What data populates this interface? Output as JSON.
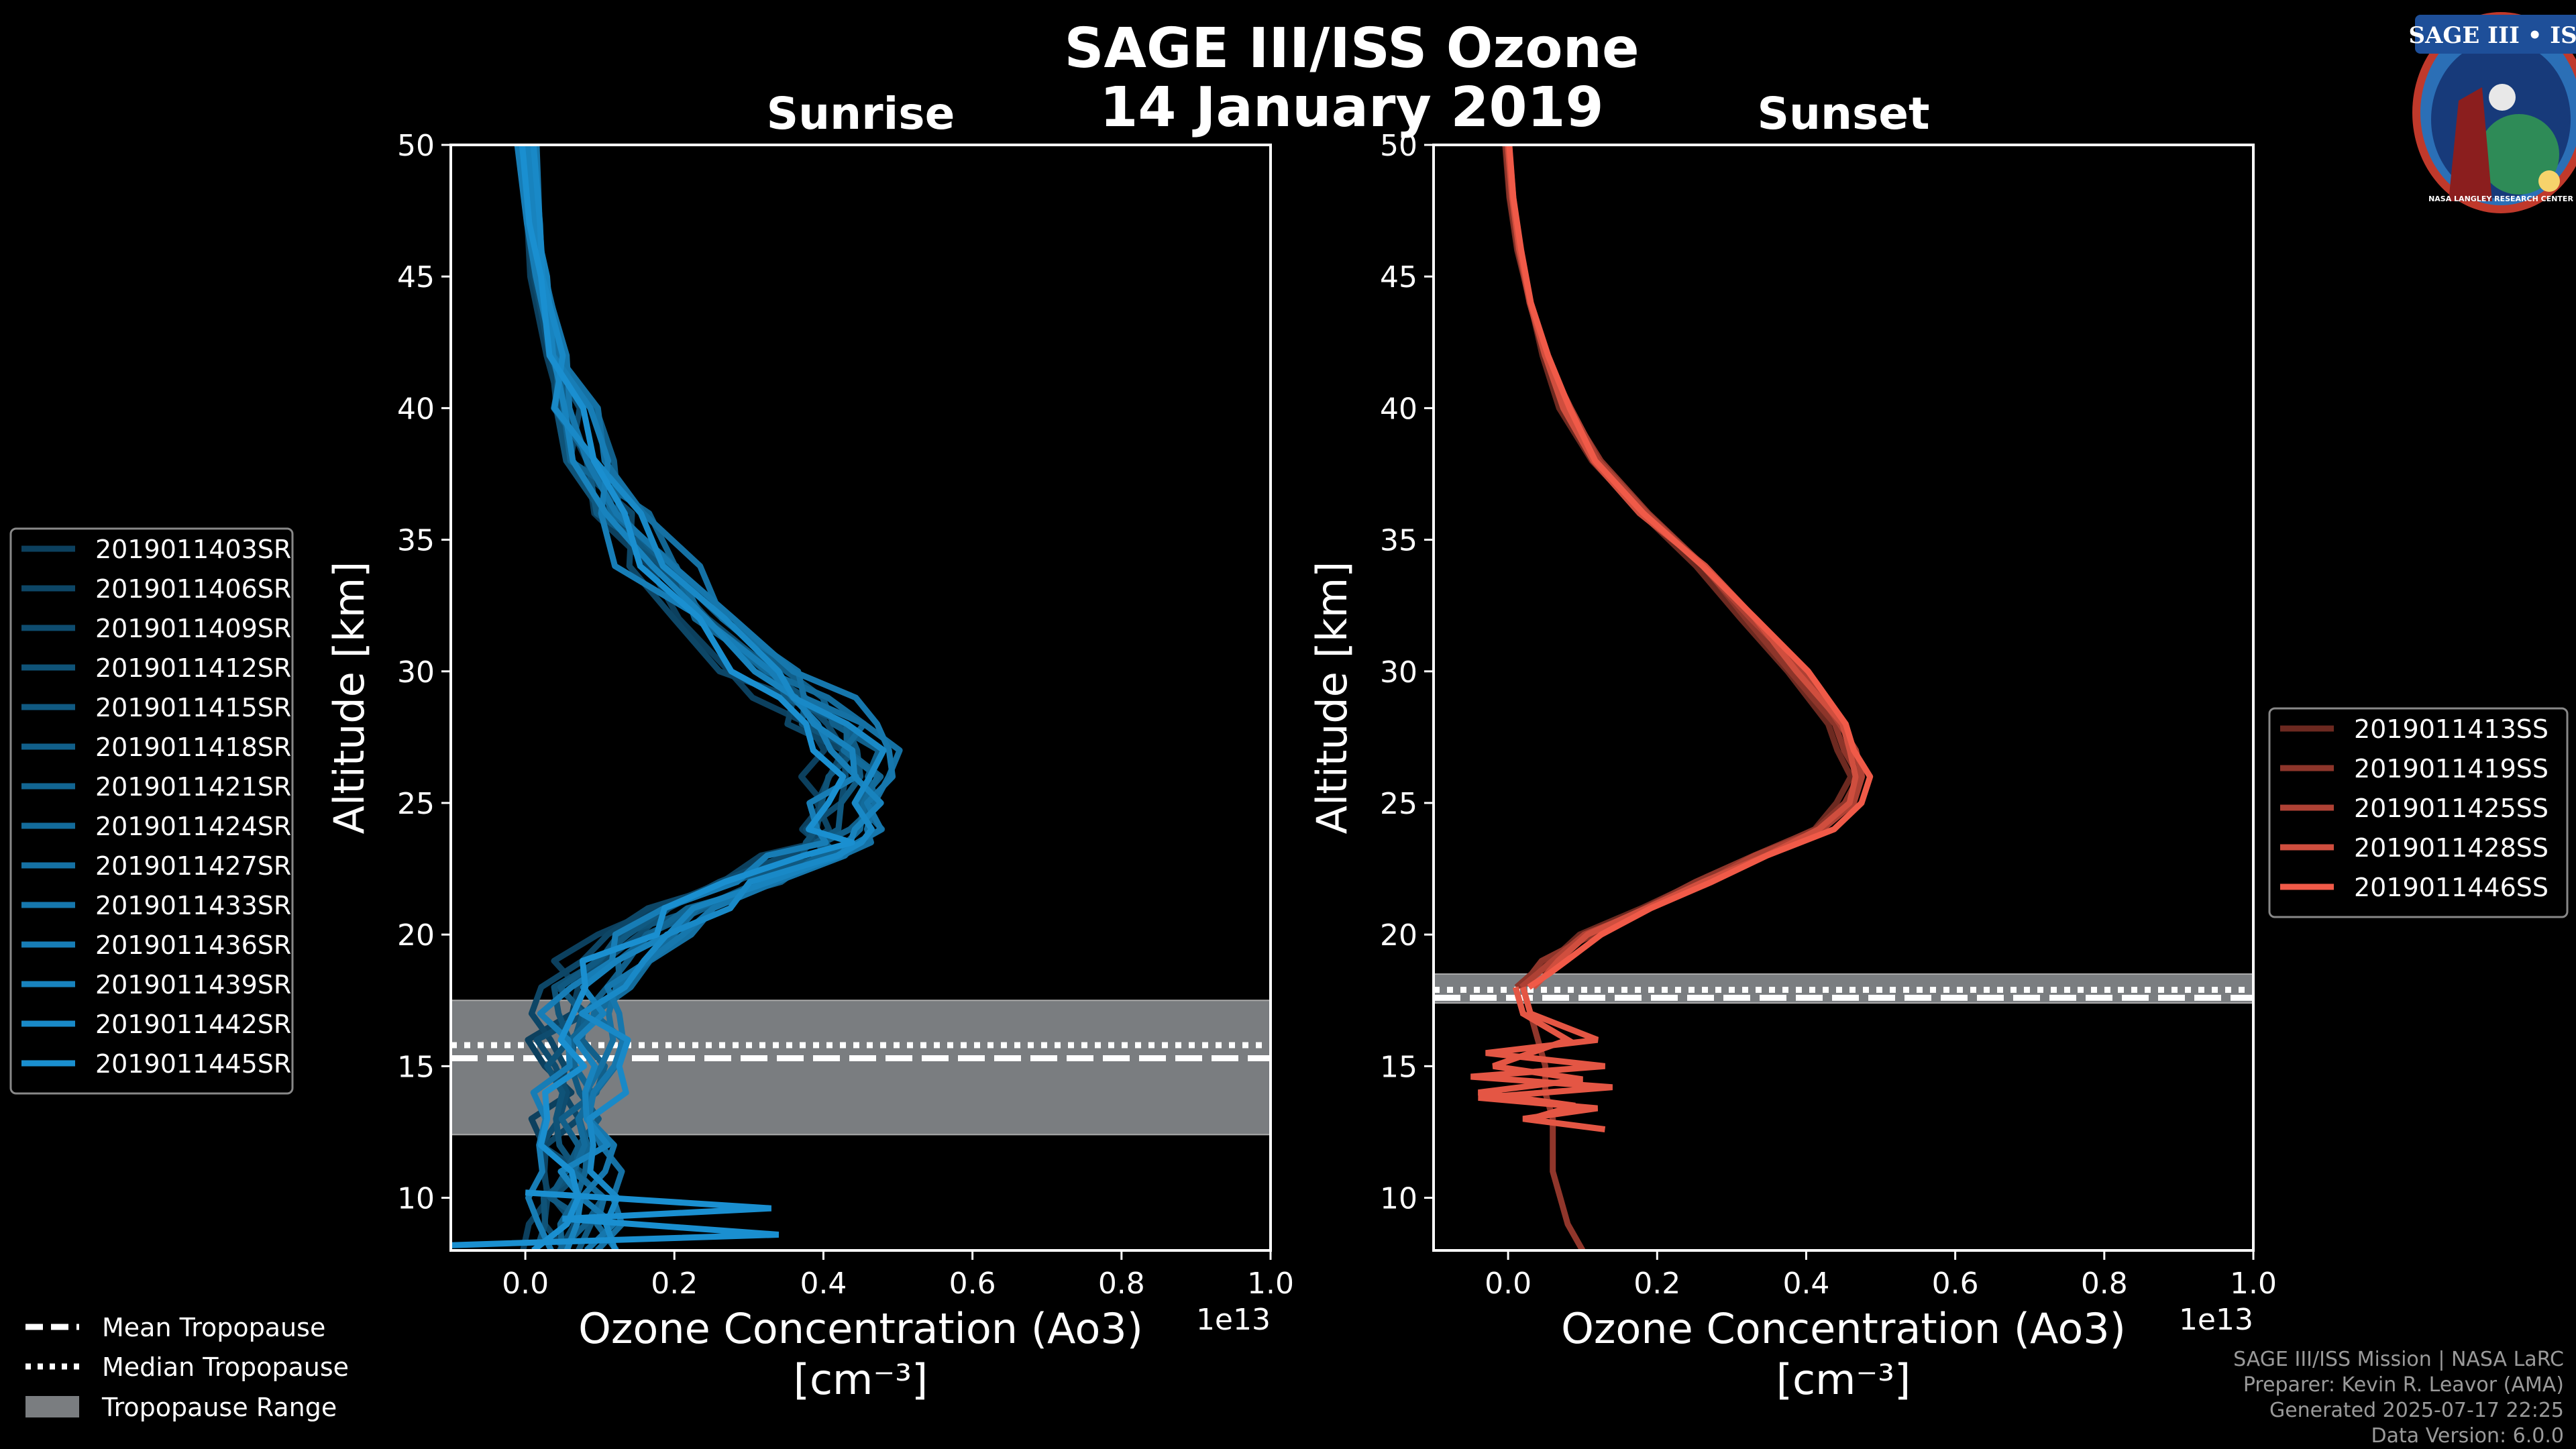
{
  "title_line1": "SAGE III/ISS Ozone",
  "title_line2": "14 January 2019",
  "logo": {
    "text": "SAGE III • ISS",
    "ring_text": "NASA LANGLEY RESEARCH CENTER"
  },
  "credits": [
    "SAGE III/ISS Mission | NASA LaRC",
    "Preparer: Kevin R. Leavor (AMA)",
    "Generated 2025-07-17 22:25",
    "Data Version: 6.0.0"
  ],
  "colors": {
    "background": "#000000",
    "sunrise": "#1a8fd0",
    "sunset": "#f05a48",
    "tropopause_band": "#7a7d80",
    "axes": "#ffffff"
  },
  "tropopause_legend": {
    "mean": "Mean Tropopause",
    "median": "Median Tropopause",
    "range": "Tropopause Range"
  },
  "chart_data": [
    {
      "type": "line",
      "title": "Sunrise",
      "xlabel_line1": "Ozone Concentration (Ao3)",
      "xlabel_line2": "[cm⁻³]",
      "ylabel": "Altitude [km]",
      "x_offset_label": "1e13",
      "xlim": [
        -0.1,
        1.0
      ],
      "ylim": [
        8,
        50
      ],
      "xticks": [
        "0.0",
        "0.2",
        "0.4",
        "0.6",
        "0.8",
        "1.0"
      ],
      "yticks": [
        "10",
        "15",
        "20",
        "25",
        "30",
        "35",
        "40",
        "45",
        "50"
      ],
      "tropopause": {
        "mean": 15.3,
        "median": 15.8,
        "range": [
          12.4,
          17.5
        ]
      },
      "legend": [
        "2019011403SR",
        "2019011406SR",
        "2019011409SR",
        "2019011412SR",
        "2019011415SR",
        "2019011418SR",
        "2019011421SR",
        "2019011424SR",
        "2019011427SR",
        "2019011433SR",
        "2019011436SR",
        "2019011439SR",
        "2019011442SR",
        "2019011445SR"
      ],
      "base_profile": {
        "altitude": [
          50,
          47,
          45,
          42,
          40,
          38,
          36,
          34,
          32,
          30,
          29,
          28,
          27,
          26,
          25,
          24,
          23.5,
          23,
          22,
          21,
          20,
          19,
          18,
          17,
          16,
          15,
          14,
          13,
          12,
          11,
          10,
          9,
          8
        ],
        "ozone_1e13": [
          0.0,
          0.01,
          0.02,
          0.04,
          0.06,
          0.09,
          0.13,
          0.18,
          0.24,
          0.32,
          0.36,
          0.4,
          0.43,
          0.44,
          0.44,
          0.43,
          0.42,
          0.38,
          0.3,
          0.22,
          0.16,
          0.11,
          0.08,
          0.07,
          0.07,
          0.07,
          0.07,
          0.07,
          0.07,
          0.06,
          0.06,
          0.06,
          0.06
        ]
      },
      "series_offsets_1e13": [
        -0.04,
        -0.03,
        -0.02,
        -0.01,
        0.0,
        0.01,
        0.02,
        0.03,
        0.04,
        0.05,
        -0.025,
        0.015,
        0.035,
        -0.015
      ],
      "outliers": [
        {
          "altitude": [
            10.2,
            9.6,
            9.2,
            8.6,
            8.2
          ],
          "ozone_1e13": [
            0.0,
            0.33,
            0.05,
            0.34,
            -0.1
          ]
        }
      ]
    },
    {
      "type": "line",
      "title": "Sunset",
      "xlabel_line1": "Ozone Concentration (Ao3)",
      "xlabel_line2": "[cm⁻³]",
      "ylabel": "Altitude [km]",
      "x_offset_label": "1e13",
      "xlim": [
        -0.1,
        1.0
      ],
      "ylim": [
        8,
        50
      ],
      "xticks": [
        "0.0",
        "0.2",
        "0.4",
        "0.6",
        "0.8",
        "1.0"
      ],
      "yticks": [
        "10",
        "15",
        "20",
        "25",
        "30",
        "35",
        "40",
        "45",
        "50"
      ],
      "tropopause": {
        "mean": 17.6,
        "median": 17.9,
        "range": [
          17.4,
          18.5
        ]
      },
      "legend": [
        "2019011413SS",
        "2019011419SS",
        "2019011425SS",
        "2019011428SS",
        "2019011446SS"
      ],
      "base_profile": {
        "altitude": [
          50,
          48,
          46,
          44,
          42,
          40,
          38,
          36,
          34,
          32,
          30,
          28,
          27,
          26,
          25,
          24,
          23,
          22,
          21,
          20,
          19,
          18.5,
          18
        ],
        "ozone_1e13": [
          0.0,
          0.005,
          0.015,
          0.03,
          0.05,
          0.08,
          0.12,
          0.18,
          0.26,
          0.33,
          0.39,
          0.44,
          0.46,
          0.47,
          0.46,
          0.42,
          0.34,
          0.26,
          0.18,
          0.11,
          0.06,
          0.04,
          0.02
        ]
      },
      "series_offsets_1e13": [
        -0.01,
        -0.005,
        0.0,
        0.005,
        0.01
      ],
      "low_profiles": [
        {
          "altitude": [
            18,
            17,
            16,
            15,
            14,
            13,
            12,
            11,
            10,
            9,
            8
          ],
          "ozone_1e13": [
            0.02,
            0.03,
            0.04,
            0.05,
            0.05,
            0.06,
            0.06,
            0.06,
            0.07,
            0.08,
            0.1
          ]
        },
        {
          "altitude": [
            18,
            17,
            16,
            15.5,
            15,
            14.6,
            14.2,
            13.8,
            13.4,
            13,
            12.6
          ],
          "ozone_1e13": [
            0.02,
            0.03,
            0.12,
            -0.03,
            0.13,
            -0.05,
            0.14,
            -0.04,
            0.12,
            0.02,
            0.13
          ]
        },
        {
          "altitude": [
            18,
            17,
            16,
            15,
            14.5,
            14,
            13.5,
            13
          ],
          "ozone_1e13": [
            0.01,
            0.02,
            0.08,
            -0.02,
            0.1,
            -0.04,
            0.09,
            0.03
          ]
        }
      ]
    }
  ]
}
